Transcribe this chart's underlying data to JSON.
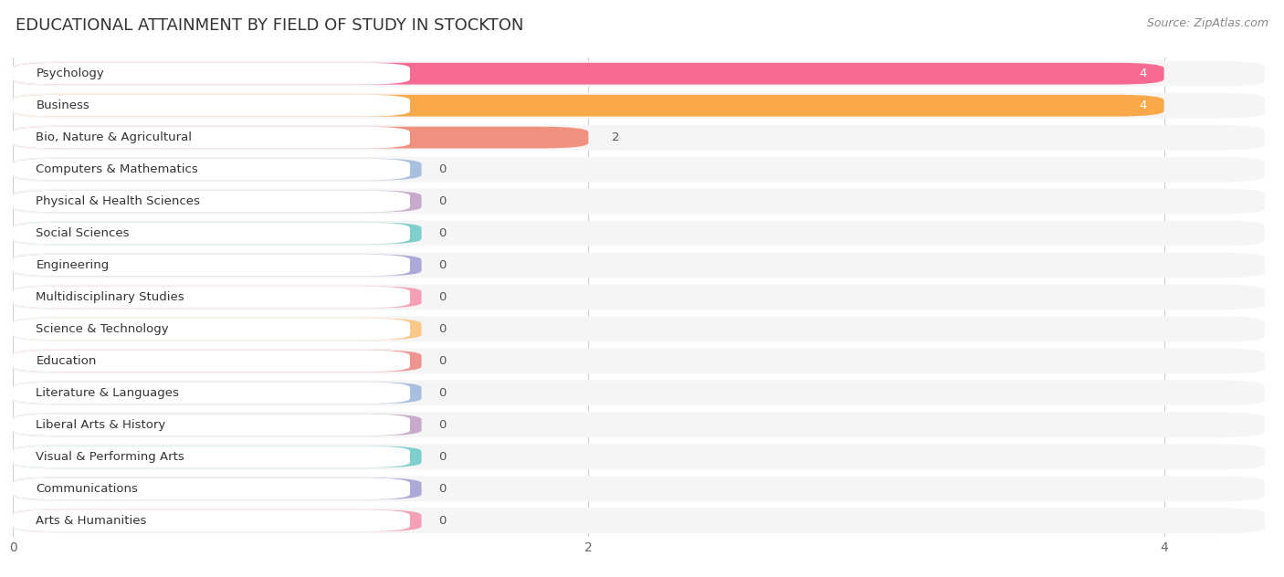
{
  "title": "EDUCATIONAL ATTAINMENT BY FIELD OF STUDY IN STOCKTON",
  "source": "Source: ZipAtlas.com",
  "categories": [
    "Psychology",
    "Business",
    "Bio, Nature & Agricultural",
    "Computers & Mathematics",
    "Physical & Health Sciences",
    "Social Sciences",
    "Engineering",
    "Multidisciplinary Studies",
    "Science & Technology",
    "Education",
    "Literature & Languages",
    "Liberal Arts & History",
    "Visual & Performing Arts",
    "Communications",
    "Arts & Humanities"
  ],
  "values": [
    4,
    4,
    2,
    0,
    0,
    0,
    0,
    0,
    0,
    0,
    0,
    0,
    0,
    0,
    0
  ],
  "bar_colors": [
    "#F96A93",
    "#F9A84A",
    "#F0917F",
    "#A9BFE0",
    "#C8AACD",
    "#7ECFCE",
    "#ABA9D8",
    "#F5A0B5",
    "#FAC98A",
    "#F09490",
    "#A9BFE0",
    "#C8AACD",
    "#7ECFCE",
    "#ABA9D8",
    "#F5A0B5"
  ],
  "xlim": [
    0,
    4.35
  ],
  "xticks": [
    0,
    2,
    4
  ],
  "background_color": "#FFFFFF",
  "bar_bg_color": "#ECECEC",
  "row_bg_color": "#F5F5F5",
  "title_fontsize": 13,
  "label_fontsize": 9.5,
  "value_fontsize": 9.5,
  "source_fontsize": 9
}
